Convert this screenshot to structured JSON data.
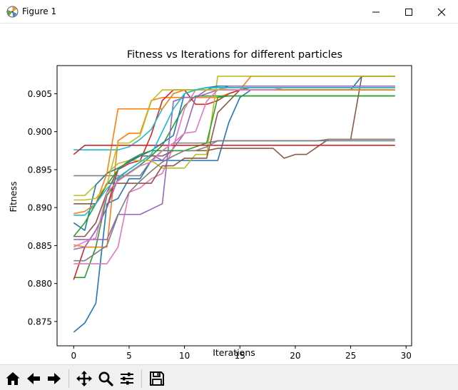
{
  "window": {
    "title": "Figure 1",
    "controls": [
      "minimize",
      "maximize",
      "close"
    ]
  },
  "toolbar": {
    "buttons": [
      "home-icon",
      "back-icon",
      "forward-icon",
      "pan-icon",
      "zoom-icon",
      "configure-subplots-icon",
      "save-icon"
    ]
  },
  "chart_data": {
    "type": "line",
    "title": "Fitness vs Iterations for different particles",
    "xlabel": "Iterations",
    "ylabel": "Fitness",
    "xlim": [
      -1.5,
      30.5
    ],
    "ylim": [
      0.8718,
      0.9087
    ],
    "xticks": [
      0,
      5,
      10,
      15,
      20,
      25,
      30
    ],
    "yticks": [
      0.875,
      0.88,
      0.885,
      0.89,
      0.895,
      0.9,
      0.905
    ],
    "ytick_labels": [
      "0.875",
      "0.880",
      "0.885",
      "0.890",
      "0.895",
      "0.900",
      "0.905"
    ],
    "grid": false,
    "legend": false,
    "series": [
      {
        "color": "#1f77b4",
        "values": [
          0.8736,
          0.8748,
          0.8774,
          0.8905,
          0.8912,
          0.8938,
          0.8938,
          0.8962,
          0.8962,
          0.8962,
          0.8962,
          0.8962,
          0.8962,
          0.8962,
          0.9012,
          0.9045,
          0.9055,
          0.9055,
          0.9055,
          0.9055,
          0.9055,
          0.9055,
          0.9055,
          0.9055,
          0.9055,
          0.9055,
          0.9073,
          0.9073,
          0.9073,
          0.9073
        ]
      },
      {
        "color": "#ff7f0e",
        "values": [
          0.8851,
          0.8848,
          0.8848,
          0.8848,
          0.8988,
          0.8998,
          0.8998,
          0.9041,
          0.9045,
          0.9045,
          0.9045,
          0.9045,
          0.9045,
          0.9045,
          0.905,
          0.9055,
          0.9073,
          0.9073,
          0.9073,
          0.9073,
          0.9073,
          0.9073,
          0.9073,
          0.9073,
          0.9073,
          0.9073,
          0.9073,
          0.9073,
          0.9073,
          0.9073
        ]
      },
      {
        "color": "#2ca02c",
        "values": [
          0.8808,
          0.8808,
          0.8848,
          0.8916,
          0.8936,
          0.8946,
          0.8956,
          0.8968,
          0.8982,
          0.9008,
          0.9034,
          0.9047,
          0.9047,
          0.9047,
          0.9047,
          0.9047,
          0.9047,
          0.9047,
          0.9047,
          0.9047,
          0.9047,
          0.9047,
          0.9047,
          0.9047,
          0.9047,
          0.9047,
          0.9047,
          0.9047,
          0.9047,
          0.9047
        ]
      },
      {
        "color": "#d62728",
        "values": [
          0.8805,
          0.8848,
          0.887,
          0.89,
          0.895,
          0.8958,
          0.8962,
          0.8996,
          0.9041,
          0.9055,
          0.9055,
          0.9036,
          0.9036,
          0.9041,
          0.905,
          0.9055,
          0.9055,
          0.9055,
          0.9055,
          0.9055,
          0.9055,
          0.9055,
          0.9055,
          0.9055,
          0.9055,
          0.9055,
          0.9055,
          0.9055,
          0.9055,
          0.9055
        ]
      },
      {
        "color": "#9467bd",
        "values": [
          0.8845,
          0.8848,
          0.887,
          0.89,
          0.8938,
          0.895,
          0.896,
          0.897,
          0.8962,
          0.8978,
          0.8998,
          0.9045,
          0.9055,
          0.906,
          0.906,
          0.906,
          0.906,
          0.906,
          0.906,
          0.906,
          0.906,
          0.906,
          0.906,
          0.906,
          0.906,
          0.906,
          0.906,
          0.906,
          0.906,
          0.906
        ]
      },
      {
        "color": "#8c564b",
        "values": [
          0.8862,
          0.8862,
          0.888,
          0.892,
          0.895,
          0.8962,
          0.8968,
          0.8968,
          0.8968,
          0.8975,
          0.8975,
          0.8975,
          0.8975,
          0.8978,
          0.8978,
          0.8978,
          0.8978,
          0.8978,
          0.8978,
          0.8965,
          0.897,
          0.897,
          0.898,
          0.899,
          0.899,
          0.899,
          0.9073,
          0.9073,
          0.9073,
          0.9073
        ]
      },
      {
        "color": "#e377c2",
        "values": [
          0.8826,
          0.8826,
          0.8826,
          0.8826,
          0.8848,
          0.892,
          0.8926,
          0.8938,
          0.8945,
          0.898,
          0.903,
          0.9055,
          0.9058,
          0.9058,
          0.9058,
          0.9058,
          0.9058,
          0.9058,
          0.9058,
          0.9058,
          0.9058,
          0.9058,
          0.9058,
          0.9058,
          0.9058,
          0.9058,
          0.9058,
          0.9058,
          0.9058,
          0.9058
        ]
      },
      {
        "color": "#7f7f7f",
        "values": [
          0.8942,
          0.8942,
          0.8942,
          0.8942,
          0.8942,
          0.8942,
          0.8942,
          0.8962,
          0.8975,
          0.8985,
          0.8985,
          0.8985,
          0.8985,
          0.8988,
          0.8988,
          0.8988,
          0.8988,
          0.8988,
          0.8988,
          0.8988,
          0.8988,
          0.8988,
          0.8988,
          0.8988,
          0.8988,
          0.8988,
          0.8988,
          0.8988,
          0.8988,
          0.8988
        ]
      },
      {
        "color": "#bcbd22",
        "values": [
          0.8916,
          0.8916,
          0.893,
          0.8945,
          0.8958,
          0.8962,
          0.8962,
          0.8962,
          0.8952,
          0.8952,
          0.8952,
          0.897,
          0.897,
          0.9073,
          0.9073,
          0.9073,
          0.9073,
          0.9073,
          0.9073,
          0.9073,
          0.9073,
          0.9073,
          0.9073,
          0.9073,
          0.9073,
          0.9073,
          0.9073,
          0.9073,
          0.9073,
          0.9073
        ]
      },
      {
        "color": "#17becf",
        "values": [
          0.8976,
          0.8976,
          0.8976,
          0.8976,
          0.8976,
          0.898,
          0.899,
          0.9003,
          0.903,
          0.905,
          0.9055,
          0.9055,
          0.9055,
          0.9055,
          0.9055,
          0.9055,
          0.9055,
          0.9055,
          0.9055,
          0.9055,
          0.9055,
          0.9055,
          0.9055,
          0.9055,
          0.9055,
          0.9055,
          0.9055,
          0.9055,
          0.9055,
          0.9055
        ]
      },
      {
        "color": "#1f77b4",
        "values": [
          0.888,
          0.887,
          0.893,
          0.8945,
          0.8952,
          0.896,
          0.8968,
          0.8975,
          0.8985,
          0.8995,
          0.905,
          0.9055,
          0.9058,
          0.906,
          0.906,
          0.906,
          0.906,
          0.906,
          0.906,
          0.906,
          0.906,
          0.906,
          0.906,
          0.906,
          0.906,
          0.906,
          0.906,
          0.906,
          0.906,
          0.906
        ]
      },
      {
        "color": "#ff7f0e",
        "values": [
          0.8892,
          0.8895,
          0.8905,
          0.8945,
          0.903,
          0.903,
          0.903,
          0.903,
          0.903,
          0.905,
          0.9055,
          0.9055,
          0.9055,
          0.9055,
          0.9055,
          0.9055,
          0.9055,
          0.9055,
          0.9055,
          0.9055,
          0.9055,
          0.9055,
          0.9055,
          0.9055,
          0.9055,
          0.9055,
          0.9055,
          0.9055,
          0.9055,
          0.9055
        ]
      },
      {
        "color": "#2ca02c",
        "values": [
          0.8862,
          0.888,
          0.8905,
          0.893,
          0.895,
          0.8962,
          0.897,
          0.8975,
          0.8975,
          0.8975,
          0.8975,
          0.898,
          0.8985,
          0.9045,
          0.9047,
          0.9047,
          0.9047,
          0.9047,
          0.9047,
          0.9047,
          0.9047,
          0.9047,
          0.9047,
          0.9047,
          0.9047,
          0.9047,
          0.9047,
          0.9047,
          0.9047,
          0.9047
        ]
      },
      {
        "color": "#d62728",
        "values": [
          0.897,
          0.8982,
          0.8982,
          0.8982,
          0.8982,
          0.8982,
          0.8982,
          0.8982,
          0.8982,
          0.8982,
          0.8982,
          0.8982,
          0.8982,
          0.8982,
          0.8982,
          0.8982,
          0.8982,
          0.8982,
          0.8982,
          0.8982,
          0.8982,
          0.8982,
          0.8982,
          0.8982,
          0.8982,
          0.8982,
          0.8982,
          0.8982,
          0.8982,
          0.8982
        ]
      },
      {
        "color": "#9467bd",
        "values": [
          0.8858,
          0.8858,
          0.8858,
          0.8858,
          0.8891,
          0.8891,
          0.8891,
          0.8898,
          0.8905,
          0.904,
          0.9045,
          0.9045,
          0.905,
          0.9055,
          0.906,
          0.906,
          0.906,
          0.906,
          0.906,
          0.906,
          0.906,
          0.906,
          0.906,
          0.906,
          0.906,
          0.906,
          0.906,
          0.906,
          0.906,
          0.906
        ]
      },
      {
        "color": "#8c564b",
        "values": [
          0.8905,
          0.8905,
          0.8905,
          0.8932,
          0.8932,
          0.8932,
          0.8932,
          0.8932,
          0.8955,
          0.8955,
          0.8965,
          0.8965,
          0.8965,
          0.9025,
          0.904,
          0.9055,
          0.9058,
          0.9058,
          0.9058,
          0.9058,
          0.9058,
          0.9058,
          0.9058,
          0.9058,
          0.9058,
          0.9058,
          0.9058,
          0.9058,
          0.9058,
          0.9058
        ]
      },
      {
        "color": "#e377c2",
        "values": [
          0.8848,
          0.8855,
          0.886,
          0.892,
          0.8935,
          0.8945,
          0.8955,
          0.896,
          0.8975,
          0.8985,
          0.8998,
          0.9,
          0.904,
          0.9055,
          0.9055,
          0.9055,
          0.9055,
          0.9055,
          0.9055,
          0.9058,
          0.9058,
          0.9058,
          0.9058,
          0.9058,
          0.9058,
          0.9058,
          0.9058,
          0.9058,
          0.9058,
          0.9058
        ]
      },
      {
        "color": "#7f7f7f",
        "values": [
          0.883,
          0.883,
          0.884,
          0.885,
          0.889,
          0.892,
          0.8935,
          0.8948,
          0.896,
          0.8968,
          0.8975,
          0.8975,
          0.898,
          0.8988,
          0.8988,
          0.8988,
          0.8988,
          0.8988,
          0.8988,
          0.8988,
          0.8988,
          0.8988,
          0.8988,
          0.899,
          0.899,
          0.899,
          0.899,
          0.899,
          0.899,
          0.899
        ]
      },
      {
        "color": "#bcbd22",
        "values": [
          0.891,
          0.891,
          0.8912,
          0.893,
          0.8985,
          0.8985,
          0.8995,
          0.904,
          0.9055,
          0.9055,
          0.9055,
          0.9055,
          0.9055,
          0.9055,
          0.9058,
          0.9058,
          0.9058,
          0.9058,
          0.9058,
          0.9058,
          0.9058,
          0.9058,
          0.9058,
          0.9058,
          0.9058,
          0.9058,
          0.9058,
          0.9058,
          0.9058,
          0.9058
        ]
      },
      {
        "color": "#17becf",
        "values": [
          0.889,
          0.889,
          0.8905,
          0.8925,
          0.894,
          0.895,
          0.896,
          0.897,
          0.9,
          0.903,
          0.905,
          0.9055,
          0.9058,
          0.9058,
          0.9058,
          0.9058,
          0.9058,
          0.9058,
          0.9058,
          0.9058,
          0.9058,
          0.9058,
          0.9058,
          0.9058,
          0.9058,
          0.9058,
          0.9058,
          0.9058,
          0.9058,
          0.9058
        ]
      }
    ]
  }
}
